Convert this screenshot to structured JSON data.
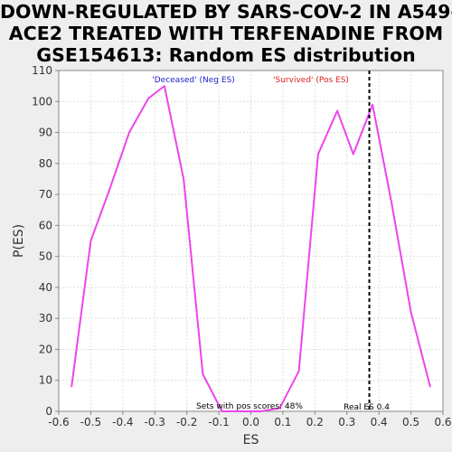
{
  "chart_title": {
    "line1": "DOWN-REGULATED BY SARS-COV-2 IN A549-",
    "line2": "ACE2 TREATED WITH TERFENADINE FROM",
    "line3": "GSE154613: Random ES distribution"
  },
  "chart_data": {
    "type": "line",
    "title": "DOWN-REGULATED BY SARS-COV-2 IN A549-ACE2 TREATED WITH TERFENADINE FROM GSE154613: Random ES distribution",
    "xlabel": "ES",
    "ylabel": "P(ES)",
    "xlim": [
      -0.6,
      0.6
    ],
    "ylim": [
      0,
      110
    ],
    "xticks": [
      "-0.6",
      "-0.5",
      "-0.4",
      "-0.3",
      "-0.2",
      "-0.1",
      "0.0",
      "0.1",
      "0.2",
      "0.3",
      "0.4",
      "0.5",
      "0.6"
    ],
    "yticks": [
      "0",
      "10",
      "20",
      "30",
      "40",
      "50",
      "60",
      "70",
      "80",
      "90",
      "100",
      "110"
    ],
    "grid": true,
    "line_color": "#ee44ee",
    "series": [
      {
        "x": [
          -0.56,
          -0.5,
          -0.44,
          -0.38,
          -0.32,
          -0.27,
          -0.21,
          -0.15,
          -0.09,
          -0.03,
          0.03,
          0.09,
          0.15,
          0.21,
          0.27,
          0.32,
          0.38,
          0.44,
          0.5,
          0.56
        ],
        "values": [
          8,
          55,
          72,
          90,
          101,
          105,
          75,
          12,
          0,
          0,
          0,
          1,
          13,
          83,
          97,
          83,
          99,
          67,
          32,
          8
        ]
      }
    ],
    "real_es": {
      "x": 0.37,
      "label": "Real ES 0.4",
      "color": "#000000"
    },
    "annotations": {
      "neg": {
        "text": "'Deceased' (Neg ES)",
        "color": "#2222cc"
      },
      "pos": {
        "text": "'Survived' (Pos ES)",
        "color": "#dd2222"
      },
      "sets": {
        "text": "Sets with pos scores: 48%",
        "color": "#000000"
      }
    }
  }
}
